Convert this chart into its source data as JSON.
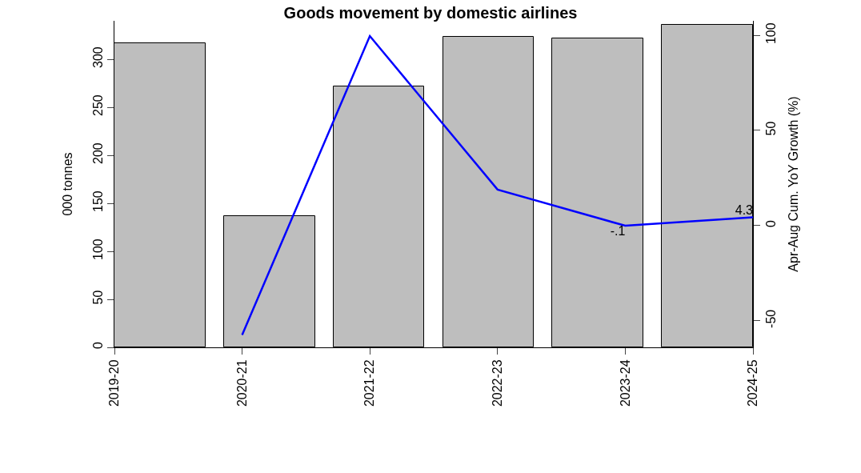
{
  "chart_data": {
    "type": "bar",
    "title": "Goods movement by domestic airlines",
    "categories": [
      "2019-20",
      "2020-21",
      "2021-22",
      "2022-23",
      "2023-24",
      "2024-25"
    ],
    "series": [
      {
        "color": "#bebebe",
        "values": [
          317,
          137,
          272,
          323,
          322,
          336
        ]
      },
      {
        "type": "line",
        "axis": "y2",
        "color": "#0000ff",
        "values": [
          null,
          -57.5,
          99.6,
          18.9,
          -0.1,
          4.3
        ],
        "value_labels": [
          null,
          null,
          null,
          null,
          "-.1",
          "4.3"
        ]
      }
    ],
    "ylabel": "000 tonnes",
    "y2label": "Apr-Aug Cum. YoY Growth (%)",
    "ylim": [
      0,
      340
    ],
    "yticks": [
      0,
      50,
      100,
      150,
      200,
      250,
      300
    ],
    "y2lim": [
      -64,
      107.6
    ],
    "y2ticks": [
      -50,
      0,
      50,
      100
    ]
  }
}
